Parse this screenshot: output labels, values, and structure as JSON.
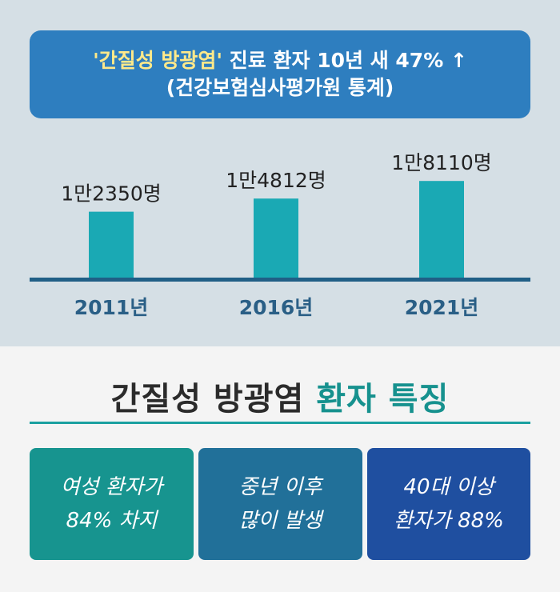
{
  "banner": {
    "highlight": "'간질성 방광염'",
    "headline_rest": " 진료 환자 10년 새 47% ↑",
    "source": "(건강보험심사평가원 통계)"
  },
  "chart_data": {
    "type": "bar",
    "categories": [
      "2011년",
      "2016년",
      "2021년"
    ],
    "values": [
      12350,
      14812,
      18110
    ],
    "data_labels": [
      "1만2350명",
      "1만4812명",
      "1만8110명"
    ],
    "ylim": [
      0,
      19000
    ],
    "grid": false,
    "axis_labels_shown": false,
    "colors": {
      "bar": "#1aa9b4",
      "baseline": "#205f86",
      "tick_label": "#2a5f86",
      "data_label": "#222222"
    }
  },
  "section": {
    "title_main": "간질성 방광염 ",
    "title_accent": "환자 특징"
  },
  "cards": [
    {
      "line1": "여성 환자가",
      "line2": "84% 차지"
    },
    {
      "line1": "중년 이후",
      "line2": "많이 발생"
    },
    {
      "line1": "40대 이상",
      "line2": "환자가 88%"
    }
  ]
}
